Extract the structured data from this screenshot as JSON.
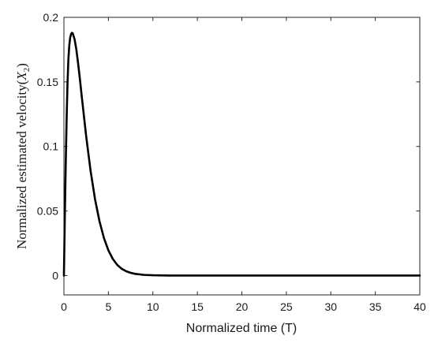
{
  "chart_data": {
    "type": "line",
    "xlabel": "Normalized time (T)",
    "ylabel_prefix": "Normalized estimated velocity",
    "ylabel_symbol": "X",
    "ylabel_subscript": "2",
    "xlim": [
      0,
      40
    ],
    "ylim": [
      -0.015,
      0.2
    ],
    "x_ticks": [
      0,
      5,
      10,
      15,
      20,
      25,
      30,
      35,
      40
    ],
    "x_tick_labels": [
      "0",
      "5",
      "10",
      "15",
      "20",
      "25",
      "30",
      "35",
      "40"
    ],
    "y_ticks": [
      0,
      0.05,
      0.1,
      0.15,
      0.2
    ],
    "y_tick_labels": [
      "0",
      "0.05",
      "0.1",
      "0.15",
      "0.2"
    ],
    "grid": false,
    "series": [
      {
        "color": "#000000",
        "x": [
          0,
          0.1,
          0.2,
          0.3,
          0.4,
          0.5,
          0.6,
          0.7,
          0.8,
          0.9,
          1.0,
          1.2,
          1.4,
          1.6,
          1.8,
          2.0,
          2.5,
          3.0,
          3.5,
          4.0,
          4.5,
          5.0,
          5.5,
          6.0,
          6.5,
          7.0,
          7.5,
          8.0,
          9.0,
          10.0,
          11.0,
          12.0,
          13.0,
          15.0,
          20.0,
          25.0,
          30.0,
          35.0,
          40.0
        ],
        "y": [
          0,
          0.045,
          0.085,
          0.12,
          0.148,
          0.167,
          0.178,
          0.184,
          0.187,
          0.188,
          0.1875,
          0.183,
          0.175,
          0.164,
          0.152,
          0.139,
          0.108,
          0.081,
          0.059,
          0.042,
          0.029,
          0.0195,
          0.0128,
          0.0082,
          0.0052,
          0.0033,
          0.0021,
          0.0013,
          0.0005,
          0.0002,
          0.0001,
          0,
          0,
          0,
          0,
          0,
          0,
          0,
          0
        ]
      }
    ]
  }
}
